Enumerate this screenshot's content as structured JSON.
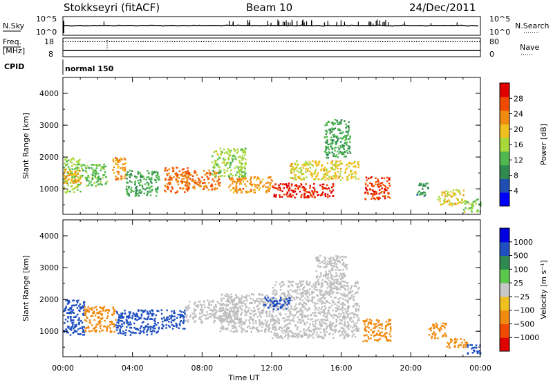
{
  "header": {
    "station": "Stokkseyri (fitACF)",
    "beam": "Beam 10",
    "date": "24/Dec/2011"
  },
  "top_panels": {
    "nsky_label": "N.Sky",
    "nsearch_label": "N.Search",
    "count_tick_high": "10^5",
    "count_tick_low": "10^0",
    "freq_label_line1": "Freq.",
    "freq_label_line2": "[MHz]",
    "freq_ticks": [
      "18",
      "8"
    ],
    "nave_label": "Nave",
    "nave_ticks": [
      "80",
      "0"
    ],
    "cpid_label": "CPID",
    "cpid_value": "normal 150"
  },
  "colors": {
    "power_scale": [
      "#0000ff",
      "#1f4fb0",
      "#2f8a4f",
      "#4fb84f",
      "#a8d83a",
      "#f0c020",
      "#f08a10",
      "#f04a00",
      "#e00000"
    ],
    "velocity_scale": [
      "#0000e0",
      "#1f4fc0",
      "#2f8a4f",
      "#5ac84a",
      "#c8c8c8",
      "#f0c020",
      "#f08a10",
      "#f04a00",
      "#e00000"
    ],
    "ground_scatter": "#bebebe"
  },
  "chart_data": [
    {
      "type": "heatmap",
      "name": "power",
      "ylabel": "Slant Range [km]",
      "ylim": [
        200,
        4500
      ],
      "yticks": [
        "1000",
        "2000",
        "3000",
        "4000"
      ],
      "xlim": [
        0,
        24
      ],
      "colorbar": {
        "label": "Power [dB]",
        "ticks": [
          "4",
          "8",
          "12",
          "16",
          "20",
          "24",
          "28"
        ]
      },
      "regions": [
        {
          "t0": 0.0,
          "t1": 1.0,
          "r0": 900,
          "r1": 2000,
          "value": 14
        },
        {
          "t0": 0.0,
          "t1": 1.0,
          "r0": 1200,
          "r1": 1700,
          "value": 20
        },
        {
          "t0": 1.0,
          "t1": 2.5,
          "r0": 1100,
          "r1": 1800,
          "value": 12
        },
        {
          "t0": 2.8,
          "t1": 3.6,
          "r0": 1300,
          "r1": 2000,
          "value": 22
        },
        {
          "t0": 3.6,
          "t1": 5.5,
          "r0": 800,
          "r1": 1600,
          "value": 10
        },
        {
          "t0": 5.8,
          "t1": 7.2,
          "r0": 900,
          "r1": 1700,
          "value": 24
        },
        {
          "t0": 7.0,
          "t1": 9.0,
          "r0": 1000,
          "r1": 1600,
          "value": 24
        },
        {
          "t0": 8.5,
          "t1": 10.5,
          "r0": 1400,
          "r1": 2300,
          "value": 14
        },
        {
          "t0": 9.5,
          "t1": 12.0,
          "r0": 900,
          "r1": 1400,
          "value": 22
        },
        {
          "t0": 12.0,
          "t1": 15.5,
          "r0": 750,
          "r1": 1200,
          "value": 29
        },
        {
          "t0": 13.0,
          "t1": 17.0,
          "r0": 1300,
          "r1": 1900,
          "value": 18
        },
        {
          "t0": 15.0,
          "t1": 16.5,
          "r0": 2000,
          "r1": 3200,
          "value": 10
        },
        {
          "t0": 17.3,
          "t1": 18.8,
          "r0": 700,
          "r1": 1400,
          "value": 27
        },
        {
          "t0": 20.3,
          "t1": 21.0,
          "r0": 800,
          "r1": 1200,
          "value": 8
        },
        {
          "t0": 21.5,
          "t1": 23.0,
          "r0": 500,
          "r1": 1000,
          "value": 18
        },
        {
          "t0": 23.0,
          "t1": 24.0,
          "r0": 300,
          "r1": 700,
          "value": 14
        }
      ]
    },
    {
      "type": "heatmap",
      "name": "velocity",
      "ylabel": "Slant Range [km]",
      "ylim": [
        200,
        4500
      ],
      "yticks": [
        "1000",
        "2000",
        "3000",
        "4000"
      ],
      "xlim": [
        0,
        24
      ],
      "xticks": [
        "00:00",
        "04:00",
        "08:00",
        "12:00",
        "16:00",
        "20:00",
        "00:00"
      ],
      "xlabel": "Time UT",
      "colorbar": {
        "label": "Velocity [m s⁻¹]",
        "ticks": [
          "1000",
          "500",
          "100",
          "25",
          "−25",
          "−100",
          "−500",
          "−1000"
        ]
      },
      "regions": [
        {
          "t0": 0.0,
          "t1": 1.2,
          "r0": 900,
          "r1": 2000,
          "value": 150
        },
        {
          "t0": 1.2,
          "t1": 3.0,
          "r0": 1000,
          "r1": 1800,
          "value": -150
        },
        {
          "t0": 3.0,
          "t1": 5.5,
          "r0": 900,
          "r1": 1700,
          "value": 120
        },
        {
          "t0": 5.6,
          "t1": 7.0,
          "r0": 1100,
          "r1": 1700,
          "value": 400
        },
        {
          "t0": 7.0,
          "t1": 10.0,
          "r0": 1300,
          "r1": 2000,
          "value": 0
        },
        {
          "t0": 9.0,
          "t1": 12.0,
          "r0": 1000,
          "r1": 2200,
          "value": 0
        },
        {
          "t0": 12.0,
          "t1": 17.0,
          "r0": 800,
          "r1": 2600,
          "value": 0
        },
        {
          "t0": 14.5,
          "t1": 16.3,
          "r0": 2500,
          "r1": 3400,
          "value": 0
        },
        {
          "t0": 11.5,
          "t1": 13.0,
          "r0": 1700,
          "r1": 2100,
          "value": 150
        },
        {
          "t0": 17.2,
          "t1": 18.8,
          "r0": 700,
          "r1": 1400,
          "value": -200
        },
        {
          "t0": 21.0,
          "t1": 22.0,
          "r0": 800,
          "r1": 1300,
          "value": -200
        },
        {
          "t0": 22.0,
          "t1": 23.2,
          "r0": 500,
          "r1": 800,
          "value": -200
        },
        {
          "t0": 23.2,
          "t1": 24.0,
          "r0": 300,
          "r1": 600,
          "value": 150
        }
      ]
    }
  ]
}
